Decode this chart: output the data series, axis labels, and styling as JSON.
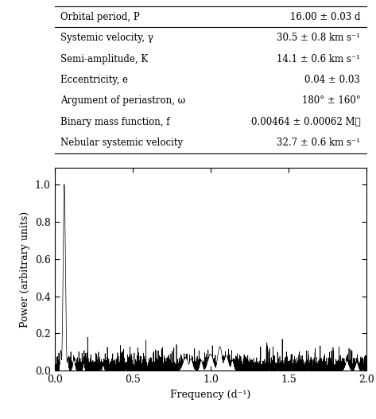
{
  "table_rows": [
    [
      "Orbital period, P",
      "16.00 ± 0.03 d"
    ],
    [
      "Systemic velocity, γ",
      "30.5 ± 0.8 km s⁻¹"
    ],
    [
      "Semi-amplitude, K",
      "14.1 ± 0.6 km s⁻¹"
    ],
    [
      "Eccentricity, e",
      "0.04 ± 0.03"
    ],
    [
      "Argument of periastron, ω",
      "180° ± 160°"
    ],
    [
      "Binary mass function, f",
      "0.00464 ± 0.00062 M☉"
    ],
    [
      "Nebular systemic velocity",
      "32.7 ± 0.6 km s⁻¹"
    ]
  ],
  "separator_after_row": 0,
  "peak_freq": 0.0625,
  "peak_power": 1.0,
  "xlim": [
    0.0,
    2.0
  ],
  "ylim": [
    0.0,
    1.09
  ],
  "yticks": [
    0.0,
    0.2,
    0.4,
    0.6,
    0.8,
    1.0
  ],
  "xticks": [
    0.0,
    0.5,
    1.0,
    1.5,
    2.0
  ],
  "xlabel": "Frequency (d⁻¹)",
  "ylabel": "Power (arbitrary units)",
  "noise_seed": 42,
  "background_color": "#ffffff",
  "line_color": "#000000"
}
